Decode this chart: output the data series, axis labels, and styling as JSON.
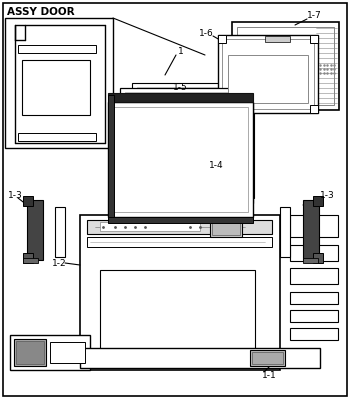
{
  "title": "ASSY DOOR",
  "bg_color": "#ffffff",
  "fig_width": 3.5,
  "fig_height": 3.99,
  "dpi": 100
}
